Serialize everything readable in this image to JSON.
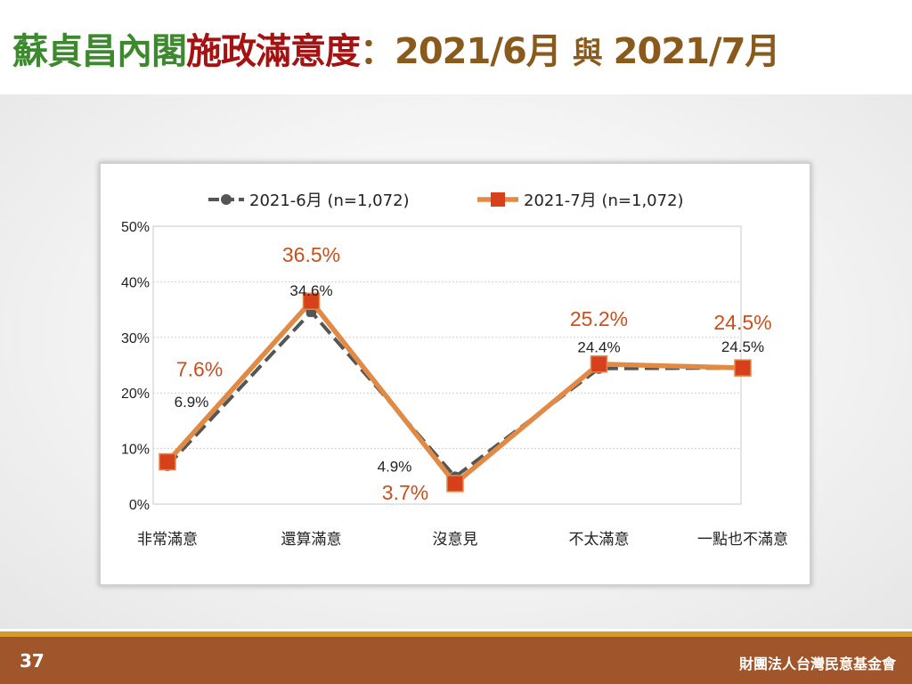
{
  "slide": {
    "title_part1": "蘇貞昌內閣",
    "title_part2": "施政滿意度",
    "title_colon": "：",
    "title_part3": "2021/6月",
    "title_connector": "與",
    "title_part4": "2021/7月",
    "page_number": "37",
    "organization": "財團法人台灣民意基金會"
  },
  "colors": {
    "series1": "#555555",
    "series2": "#e08a45",
    "marker2": "#d8401c",
    "label2": "#c8501e",
    "label1": "#222222"
  },
  "chart_data": {
    "type": "line",
    "categories": [
      "非常滿意",
      "還算滿意",
      "沒意見",
      "不太滿意",
      "一點也不滿意"
    ],
    "series": [
      {
        "name": "2021-6月  (n=1,072)",
        "values": [
          6.9,
          34.6,
          4.9,
          24.4,
          24.5
        ],
        "labels": [
          "6.9%",
          "34.6%",
          "4.9%",
          "24.4%",
          "24.5%"
        ],
        "style": "dashed-circle"
      },
      {
        "name": "2021-7月  (n=1,072)",
        "values": [
          7.6,
          36.5,
          3.7,
          25.2,
          24.5
        ],
        "labels": [
          "7.6%",
          "36.5%",
          "3.7%",
          "25.2%",
          "24.5%"
        ],
        "style": "solid-square"
      }
    ],
    "y_ticks": [
      "0%",
      "10%",
      "20%",
      "30%",
      "40%",
      "50%"
    ],
    "ylim": [
      0,
      50
    ],
    "grid": true,
    "legend_position": "top"
  }
}
